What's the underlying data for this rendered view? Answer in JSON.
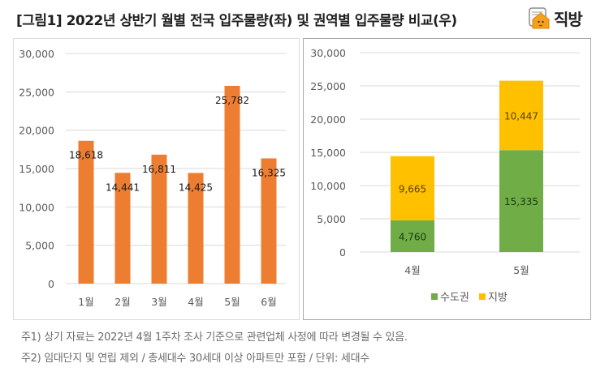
{
  "header": {
    "title": "[그림1] 2022년 상반기 월별 전국 입주물량(좌) 및 권역별 입주물량 비교(우)",
    "logo_text": "직방",
    "logo_icon": "house-icon"
  },
  "colors": {
    "orange": "#ED7D31",
    "green": "#70AD47",
    "yellow": "#FFC000",
    "grid": "#D9D9D9",
    "tick_text": "#595959"
  },
  "chart_data": [
    {
      "type": "bar",
      "title": "",
      "xlabel": "",
      "ylabel": "",
      "categories": [
        "1월",
        "2월",
        "3월",
        "4월",
        "5월",
        "6월"
      ],
      "values": [
        18618,
        14441,
        16811,
        14425,
        25782,
        16325
      ],
      "value_labels": [
        "18,618",
        "14,441",
        "16,811",
        "14,425",
        "25,782",
        "16,325"
      ],
      "ylim": [
        0,
        30000
      ],
      "yticks": [
        0,
        5000,
        10000,
        15000,
        20000,
        25000,
        30000
      ],
      "ytick_labels": [
        "0",
        "5,000",
        "10,000",
        "15,000",
        "20,000",
        "25,000",
        "30,000"
      ],
      "grid": true,
      "legend": "none"
    },
    {
      "type": "bar",
      "stacked": true,
      "title": "",
      "xlabel": "",
      "ylabel": "",
      "categories": [
        "4월",
        "5월"
      ],
      "series": [
        {
          "name": "수도권",
          "values": [
            4760,
            15335
          ],
          "value_labels": [
            "4,760",
            "15,335"
          ]
        },
        {
          "name": "지방",
          "values": [
            9665,
            10447
          ],
          "value_labels": [
            "9,665",
            "10,447"
          ]
        }
      ],
      "ylim": [
        0,
        30000
      ],
      "yticks": [
        0,
        5000,
        10000,
        15000,
        20000,
        25000,
        30000
      ],
      "ytick_labels": [
        "0",
        "5,000",
        "10,000",
        "15,000",
        "20,000",
        "25,000",
        "30,000"
      ],
      "grid": true,
      "legend": "bottom"
    }
  ],
  "notes": [
    "주1) 상기 자료는 2022년 4월 1주차 조사 기준으로 관련업체 사정에 따라 변경될 수 있음.",
    "주2) 임대단지 및 연립 제외 / 총세대수 30세대 이상 아파트만 포함 / 단위: 세대수"
  ]
}
